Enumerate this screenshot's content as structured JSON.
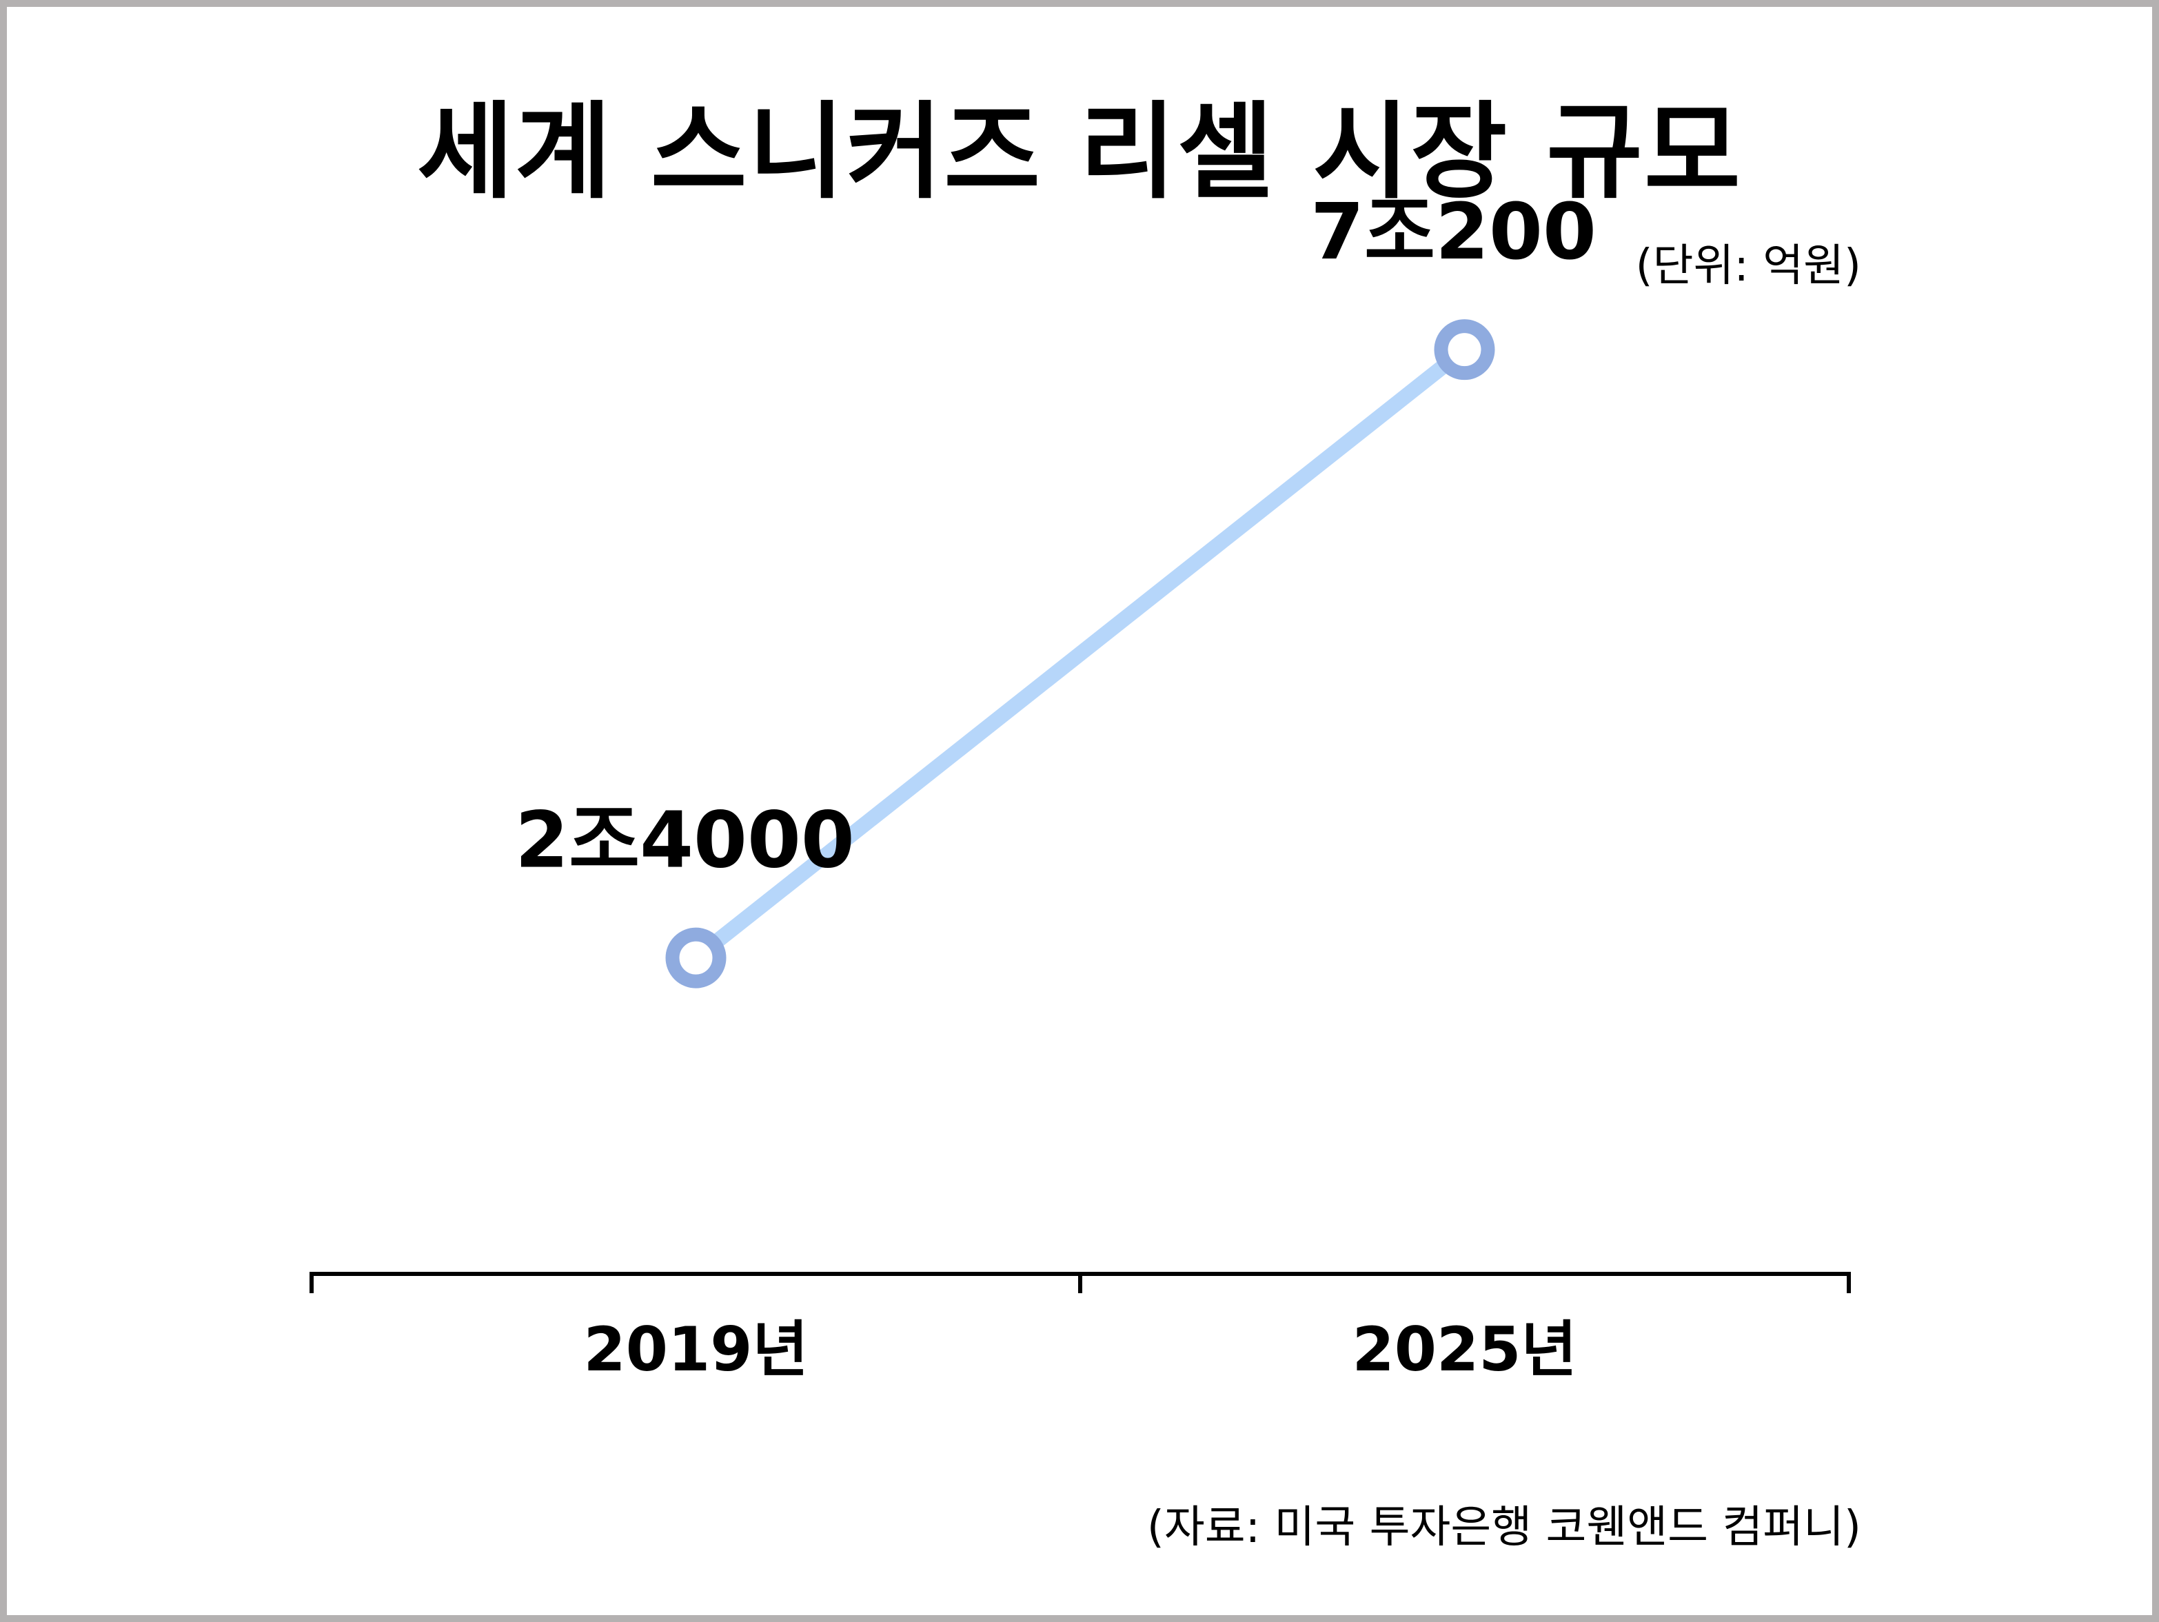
{
  "colors": {
    "frame": "#b4b1b1",
    "line": "#b6d6fa",
    "marker_stroke": "#8fabdf",
    "marker_fill": "#ffffff",
    "axis": "#000000",
    "text": "#000000"
  },
  "chart_data": {
    "type": "line",
    "title": "세계 스니커즈 리셀 시장 규모",
    "unit_note": "(단위: 억원)",
    "source": "(자료: 미국 투자은행 코웬앤드 컴퍼니)",
    "categories": [
      "2019년",
      "2025년"
    ],
    "series": [
      {
        "values": [
          24000,
          70200
        ],
        "labels": [
          "2조4000",
          "7조200"
        ]
      }
    ],
    "ylim": [
      0,
      80000
    ],
    "grid": false,
    "legend": "none"
  }
}
